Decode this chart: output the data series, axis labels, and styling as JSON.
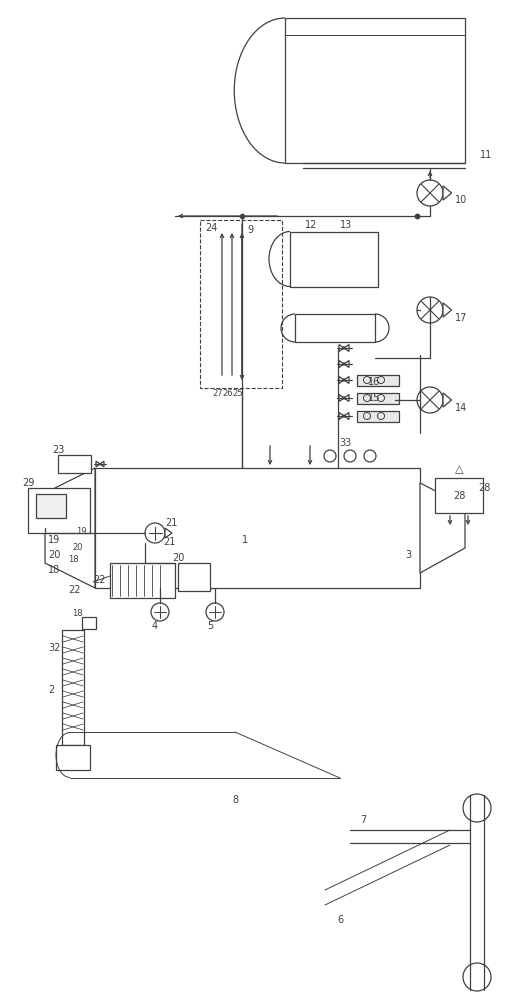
{
  "bg": "#ffffff",
  "lc": "#404040",
  "lw": 0.9,
  "tlw": 0.7
}
